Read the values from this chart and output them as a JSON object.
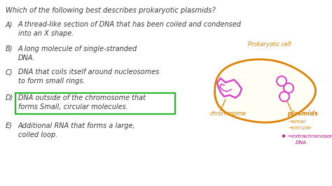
{
  "bg_color": "#ffffff",
  "title": "Which of the following best describes prokaryotic plasmids?",
  "title_color": "#3a3a3a",
  "options": [
    {
      "label": "A)",
      "line1": "A thread-like section of DNA that has been coiled and condensed",
      "line2": "into an X shape.",
      "highlight": false
    },
    {
      "label": "B)",
      "line1": "A long molecule of single-stranded",
      "line2": "DNA.",
      "highlight": false
    },
    {
      "label": "C)",
      "line1": "DNA that coils itself around nucleosomes",
      "line2": "to form small rings.",
      "highlight": false
    },
    {
      "label": "D)",
      "line1": "DNA outside of the chromosome that",
      "line2": "forms Small, circular molecules.",
      "highlight": true
    },
    {
      "label": "E)",
      "line1": "Additional RNA that forms a large,",
      "line2": "coiled loop.",
      "highlight": false
    }
  ],
  "text_color": "#3a3a3a",
  "highlight_box_color": "#2db52d",
  "cell_label": "Prokaryotic cell",
  "cell_label_color": "#e08000",
  "chromosome_label": "chromosome",
  "plasmids_label": "plasmids",
  "diagram_color": "#e08000",
  "chromosome_color": "#dd44cc",
  "plasmid_color": "#dd44cc",
  "extrachromosomal_color": "#cc0088",
  "plasmid_bullets": [
    "→small",
    "→circular"
  ],
  "extrachromosomal_line1": "✱ →extrachromosomal",
  "extrachromosomal_line2": "DNA",
  "title_fontsize": 7.2,
  "option_fontsize": 7.0,
  "diagram_fontsize": 5.8
}
